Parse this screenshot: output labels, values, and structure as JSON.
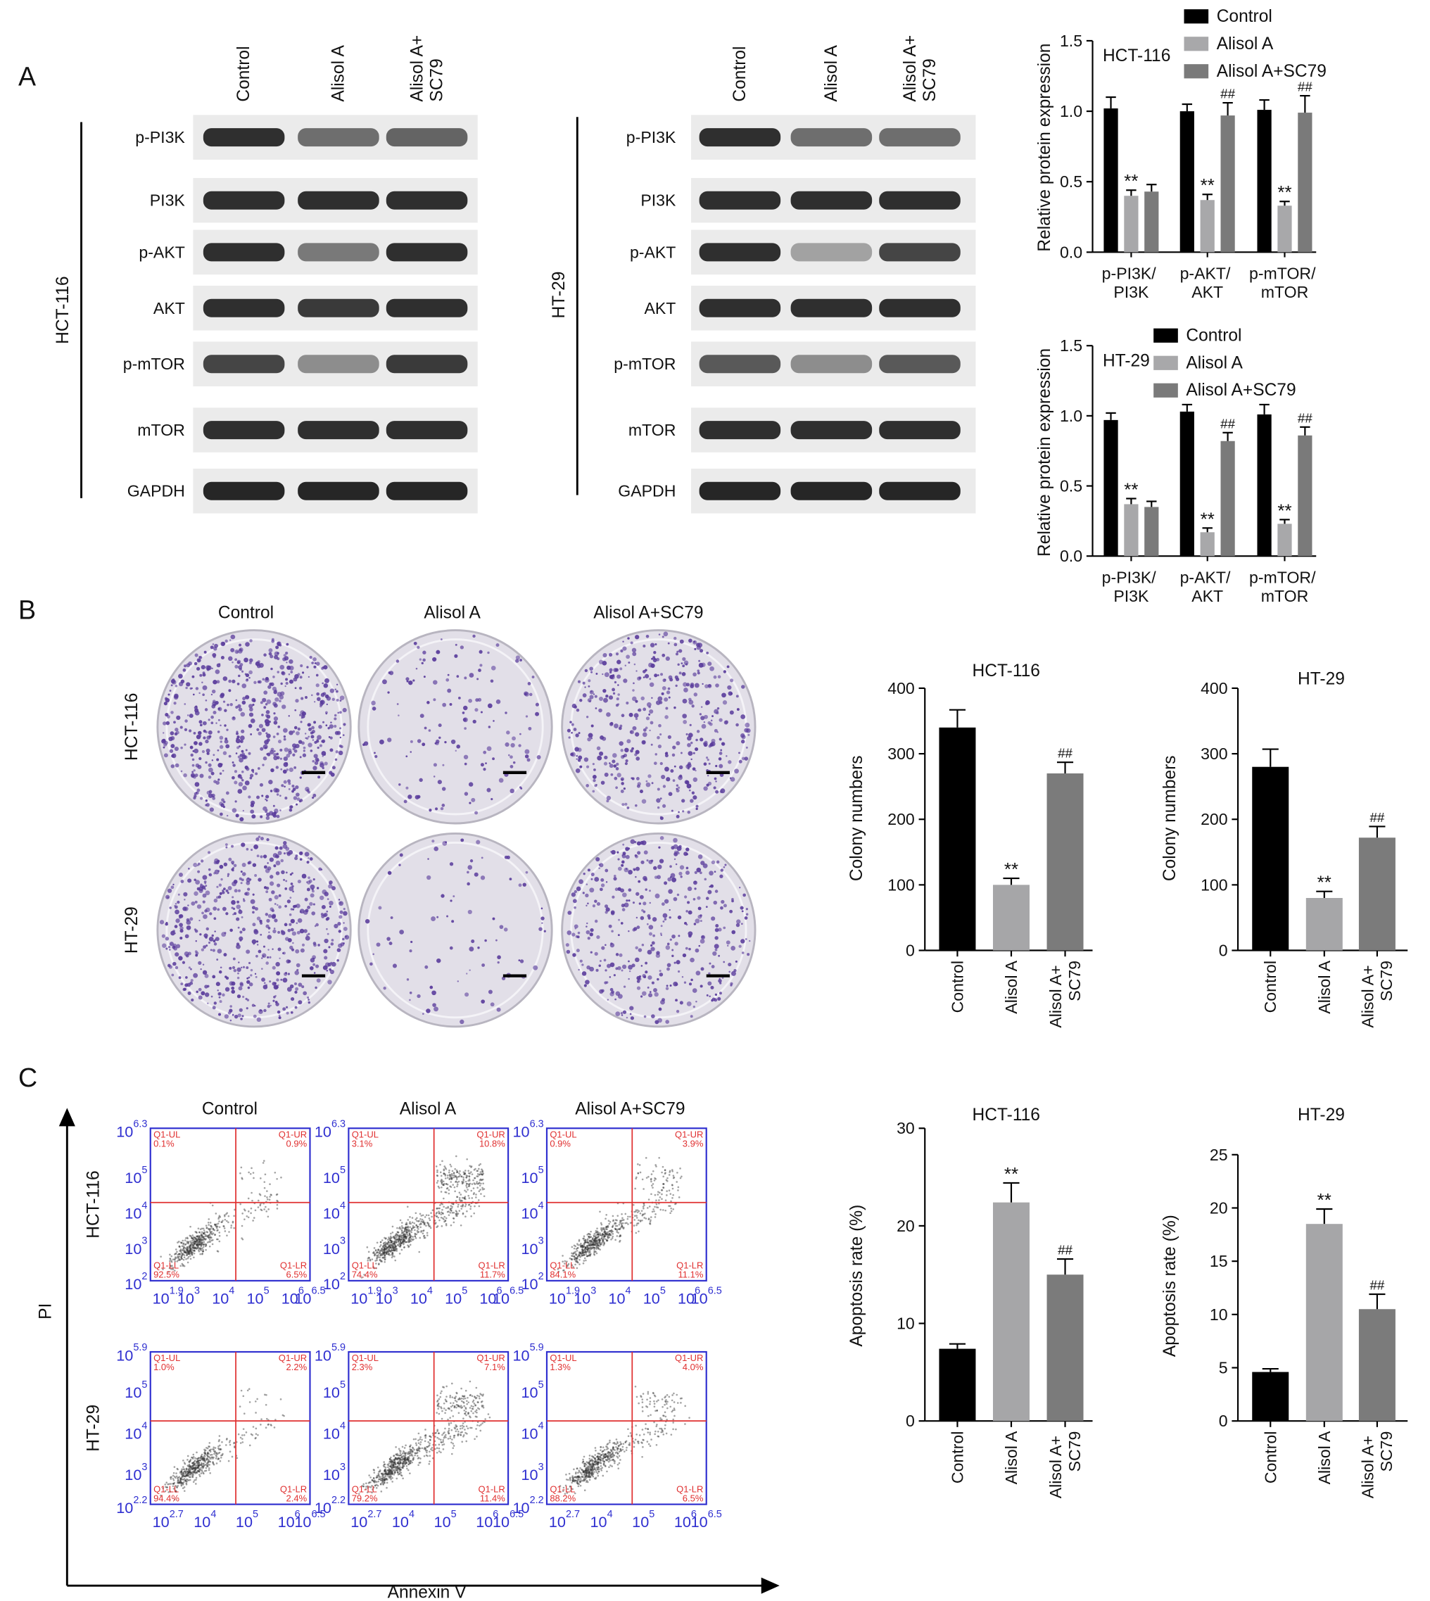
{
  "panel_labels": [
    "A",
    "B",
    "C"
  ],
  "blots": [
    {
      "cell_line": "HCT-116",
      "lanes": [
        "Control",
        "Alisol A",
        "Alisol A+ SC79"
      ],
      "proteins": [
        "p-PI3K",
        "PI3K",
        "p-AKT",
        "AKT",
        "p-mTOR",
        "mTOR",
        "GAPDH"
      ]
    },
    {
      "cell_line": "HT-29",
      "lanes": [
        "Control",
        "Alisol A",
        "Alisol A+ SC79"
      ],
      "proteins": [
        "p-PI3K",
        "PI3K",
        "p-AKT",
        "AKT",
        "p-mTOR",
        "mTOR",
        "GAPDH"
      ]
    }
  ],
  "colony": {
    "conditions": [
      "Control",
      "Alisol A",
      "Alisol A+SC79"
    ],
    "cell_lines": [
      "HCT-116",
      "HT-29"
    ]
  },
  "flow": {
    "conditions": [
      "Control",
      "Alisol A",
      "Alisol A+SC79"
    ],
    "y_label": "PI",
    "x_label": "Annexin V",
    "tick_base": "10",
    "quadrant_names": [
      "Q1-UL",
      "Q1-UR",
      "Q1-LL",
      "Q1-LR"
    ],
    "rows": [
      {
        "cell_line": "HCT-116",
        "xlim": [
          1.9,
          6.5
        ],
        "xticks": [
          1.9,
          3,
          4,
          5,
          6,
          6.5
        ],
        "ylim": [
          2,
          6.3
        ],
        "yticks": [
          2,
          3,
          4,
          5,
          6.3
        ],
        "plots": [
          [
            "0.1%",
            "0.9%",
            "92.5%",
            "6.5%"
          ],
          [
            "3.1%",
            "10.8%",
            "74.4%",
            "11.7%"
          ],
          [
            "0.9%",
            "3.9%",
            "84.1%",
            "11.1%"
          ]
        ]
      },
      {
        "cell_line": "HT-29",
        "xlim": [
          2.7,
          6.5
        ],
        "xticks": [
          2.7,
          4,
          5,
          6,
          6.5
        ],
        "ylim": [
          2.2,
          5.9
        ],
        "yticks": [
          2.2,
          3,
          4,
          5,
          5.9
        ],
        "plots": [
          [
            "1.0%",
            "2.2%",
            "94.4%",
            "2.4%"
          ],
          [
            "2.3%",
            "7.1%",
            "79.2%",
            "11.4%"
          ],
          [
            "1.3%",
            "4.0%",
            "88.2%",
            "6.5%"
          ]
        ]
      }
    ]
  },
  "chart_data": [
    {
      "type": "grouped_bar",
      "title": "HCT-116",
      "y_label": "Relative protein expression",
      "categories": [
        "p-PI3K/ PI3K",
        "p-AKT/ AKT",
        "p-mTOR/ mTOR"
      ],
      "series": [
        {
          "name": "Control",
          "color": "#000000",
          "values": [
            1.02,
            1.0,
            1.01
          ],
          "errors": [
            0.08,
            0.05,
            0.07
          ]
        },
        {
          "name": "Alisol A",
          "color": "#a8a8aa",
          "values": [
            0.4,
            0.37,
            0.33
          ],
          "errors": [
            0.04,
            0.04,
            0.03
          ],
          "annotations": [
            "**",
            "**",
            "**"
          ]
        },
        {
          "name": "Alisol A+SC79",
          "color": "#7a7a7a",
          "values": [
            0.43,
            0.97,
            0.99
          ],
          "errors": [
            0.05,
            0.09,
            0.12
          ],
          "annotations": [
            null,
            "##",
            "##"
          ]
        }
      ],
      "ylim": [
        0,
        1.5
      ],
      "yticks": [
        {
          "value": 0,
          "label": "0.0"
        },
        0.5,
        {
          "value": 1,
          "label": "1.0"
        },
        1.5
      ],
      "legend": "top-right"
    },
    {
      "type": "grouped_bar",
      "title": "HT-29",
      "y_label": "Relative protein expression",
      "categories": [
        "p-PI3K/ PI3K",
        "p-AKT/ AKT",
        "p-mTOR/ mTOR"
      ],
      "series": [
        {
          "name": "Control",
          "color": "#000000",
          "values": [
            0.97,
            1.03,
            1.01
          ],
          "errors": [
            0.05,
            0.05,
            0.07
          ]
        },
        {
          "name": "Alisol A",
          "color": "#a8a8aa",
          "values": [
            0.37,
            0.17,
            0.23
          ],
          "errors": [
            0.04,
            0.03,
            0.03
          ],
          "annotations": [
            "**",
            "**",
            "**"
          ]
        },
        {
          "name": "Alisol A+SC79",
          "color": "#7a7a7a",
          "values": [
            0.35,
            0.82,
            0.86
          ],
          "errors": [
            0.04,
            0.06,
            0.06
          ],
          "annotations": [
            null,
            "##",
            "##"
          ]
        }
      ],
      "ylim": [
        0,
        1.5
      ],
      "yticks": [
        {
          "value": 0,
          "label": "0.0"
        },
        0.5,
        {
          "value": 1,
          "label": "1.0"
        },
        1.5
      ],
      "legend": "top-right"
    },
    {
      "type": "bar",
      "title": "HCT-116",
      "y_label": "Colony numbers",
      "categories": [
        "Control",
        "Alisol A",
        "Alisol A+ SC79"
      ],
      "values": [
        340,
        100,
        270
      ],
      "errors": [
        27,
        10,
        17
      ],
      "colors": [
        "#000000",
        "#a6a6a8",
        "#7b7b7b"
      ],
      "annotations": [
        null,
        "**",
        "##"
      ],
      "ylim": [
        0,
        400
      ],
      "yticks": [
        0,
        100,
        200,
        300,
        400
      ]
    },
    {
      "type": "bar",
      "title": "HT-29",
      "y_label": "Colony numbers",
      "categories": [
        "Control",
        "Alisol A",
        "Alisol A+ SC79"
      ],
      "values": [
        280,
        80,
        172
      ],
      "errors": [
        27,
        10,
        17
      ],
      "colors": [
        "#000000",
        "#a6a6a8",
        "#7b7b7b"
      ],
      "annotations": [
        null,
        "**",
        "##"
      ],
      "ylim": [
        0,
        400
      ],
      "yticks": [
        0,
        100,
        200,
        300,
        400
      ]
    },
    {
      "type": "bar",
      "title": "HCT-116",
      "y_label": "Apoptosis rate (%)",
      "categories": [
        "Control",
        "Alisol A",
        "Alisol A+ SC79"
      ],
      "values": [
        7.4,
        22.4,
        15.0
      ],
      "errors": [
        0.5,
        2.0,
        1.6
      ],
      "colors": [
        "#000000",
        "#a6a6a8",
        "#7b7b7b"
      ],
      "annotations": [
        null,
        "**",
        "##"
      ],
      "ylim": [
        0,
        30
      ],
      "yticks": [
        0,
        10,
        20,
        30
      ]
    },
    {
      "type": "bar",
      "title": "HT-29",
      "y_label": "Apoptosis rate (%)",
      "categories": [
        "Control",
        "Alisol A",
        "Alisol A+ SC79"
      ],
      "values": [
        4.6,
        18.5,
        10.5
      ],
      "errors": [
        0.3,
        1.4,
        1.4
      ],
      "colors": [
        "#000000",
        "#a6a6a8",
        "#7b7b7b"
      ],
      "annotations": [
        null,
        "**",
        "##"
      ],
      "ylim": [
        0,
        25
      ],
      "yticks": [
        0,
        5,
        10,
        15,
        20,
        25
      ]
    }
  ]
}
